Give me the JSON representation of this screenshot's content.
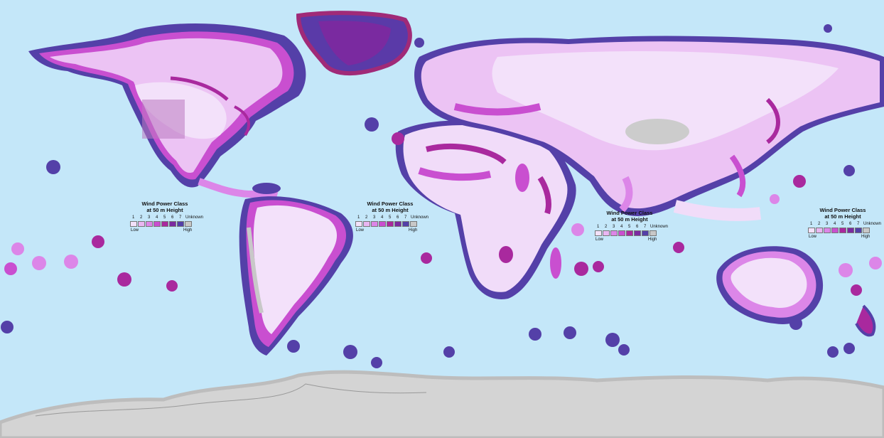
{
  "map": {
    "ocean_color": "#c4e7f9",
    "land_color": "#f1dcf9",
    "antarctica_color": "#cfcfcf",
    "legend": {
      "title_line1": "Wind Power Class",
      "title_line2": "at 50 m Height",
      "classes": [
        "1",
        "2",
        "3",
        "4",
        "5",
        "6",
        "7"
      ],
      "unknown_label": "Unknown",
      "low_label": "Low",
      "high_label": "High",
      "class_colors": [
        "#f3e1fa",
        "#e9b6f2",
        "#dc86e8",
        "#c94fd0",
        "#a9299e",
        "#7b2aa1",
        "#5440a8"
      ],
      "unknown_color": "#c8c8c8"
    }
  }
}
